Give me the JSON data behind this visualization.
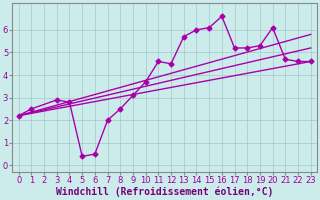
{
  "background_color": "#ccecec",
  "grid_color": "#aacece",
  "line_color": "#aa00aa",
  "marker": "D",
  "markersize": 2.5,
  "linewidth": 1.0,
  "xlabel": "Windchill (Refroidissement éolien,°C)",
  "xlabel_fontsize": 7.0,
  "ylabel_ticks": [
    0,
    1,
    2,
    3,
    4,
    5,
    6
  ],
  "xtick_labels": [
    "0",
    "1",
    "2",
    "3",
    "4",
    "5",
    "6",
    "7",
    "8",
    "9",
    "10",
    "11",
    "12",
    "13",
    "14",
    "15",
    "16",
    "17",
    "18",
    "19",
    "20",
    "21",
    "22",
    "23"
  ],
  "ylim": [
    -0.3,
    7.2
  ],
  "xlim": [
    -0.5,
    23.5
  ],
  "main_series": [
    2.2,
    2.5,
    null,
    2.9,
    2.8,
    0.4,
    0.5,
    2.0,
    2.5,
    3.1,
    3.7,
    4.6,
    4.5,
    5.7,
    6.0,
    6.1,
    6.6,
    5.2,
    5.2,
    5.3,
    6.1,
    4.7,
    4.6,
    4.6
  ],
  "trend_lines": [
    {
      "x0": 0,
      "y0": 2.2,
      "x1": 23,
      "y1": 4.6
    },
    {
      "x0": 0,
      "y0": 2.2,
      "x1": 23,
      "y1": 5.2
    },
    {
      "x0": 0,
      "y0": 2.2,
      "x1": 23,
      "y1": 5.8
    }
  ],
  "tick_fontsize": 6.0,
  "tick_color": "#990099",
  "xlabel_color": "#770077",
  "spine_color": "#888888"
}
